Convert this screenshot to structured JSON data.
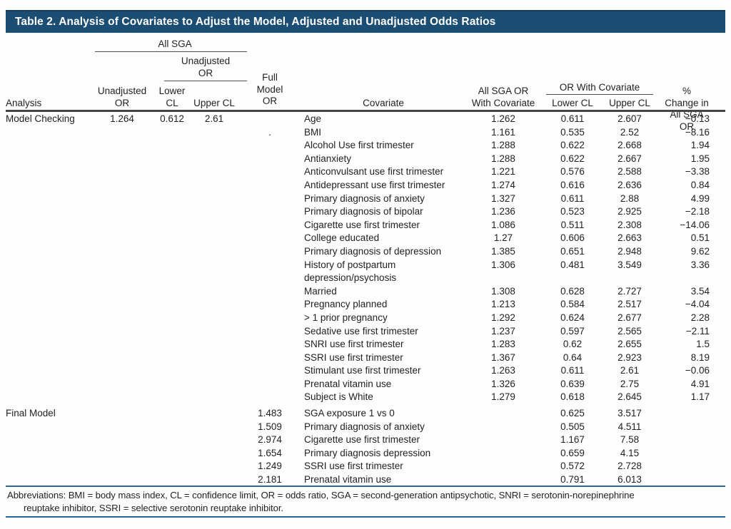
{
  "title": "Table 2. Analysis of Covariates to Adjust the Model, Adjusted and Unadjusted Odds Ratios",
  "colors": {
    "header_bar": "#1c4e74",
    "blue_rule": "#2a6496",
    "text": "#231f20"
  },
  "columns": {
    "analysis": "Analysis",
    "all_sga_group": "All SGA",
    "unadjusted_or_group": "Unadjusted\nOR",
    "unadjusted_or": "Unadjusted\nOR",
    "lower_cl": "Lower\nCL",
    "upper_cl": "Upper CL",
    "full_model_or": "Full\nModel\nOR",
    "covariate": "Covariate",
    "all_sga_or_with_covariate": "All SGA OR\nWith Covariate",
    "or_with_covariate_group": "OR With Covariate",
    "cov_lower_cl": "Lower CL",
    "cov_upper_cl": "Upper CL",
    "pct_change": "% Change in\nAll SGA OR"
  },
  "sections": [
    {
      "analysis": "Model Checking",
      "unadjusted_or": "1.264",
      "lower_cl": "0.612",
      "upper_cl": "2.61",
      "rows": [
        {
          "full_model_or": "",
          "covariate": "Age",
          "all_sga_or": "1.262",
          "lower_cl": "0.611",
          "upper_cl": "2.607",
          "pct_change": "−0.13"
        },
        {
          "full_model_or": ".",
          "covariate": "BMI",
          "all_sga_or": "1.161",
          "lower_cl": "0.535",
          "upper_cl": "2.52",
          "pct_change": "−8.16"
        },
        {
          "full_model_or": "",
          "covariate": "Alcohol Use first trimester",
          "all_sga_or": "1.288",
          "lower_cl": "0.622",
          "upper_cl": "2.668",
          "pct_change": "1.94"
        },
        {
          "full_model_or": "",
          "covariate": "Antianxiety",
          "all_sga_or": "1.288",
          "lower_cl": "0.622",
          "upper_cl": "2.667",
          "pct_change": "1.95"
        },
        {
          "full_model_or": "",
          "covariate": "Anticonvulsant use first trimester",
          "all_sga_or": "1.221",
          "lower_cl": "0.576",
          "upper_cl": "2.588",
          "pct_change": "−3.38"
        },
        {
          "full_model_or": "",
          "covariate": "Antidepressant use first trimester",
          "all_sga_or": "1.274",
          "lower_cl": "0.616",
          "upper_cl": "2.636",
          "pct_change": "0.84"
        },
        {
          "full_model_or": "",
          "covariate": "Primary diagnosis of anxiety",
          "all_sga_or": "1.327",
          "lower_cl": "0.611",
          "upper_cl": "2.88",
          "pct_change": "4.99"
        },
        {
          "full_model_or": "",
          "covariate": "Primary diagnosis of bipolar",
          "all_sga_or": "1.236",
          "lower_cl": "0.523",
          "upper_cl": "2.925",
          "pct_change": "−2.18"
        },
        {
          "full_model_or": "",
          "covariate": "Cigarette use first trimester",
          "all_sga_or": "1.086",
          "lower_cl": "0.511",
          "upper_cl": "2.308",
          "pct_change": "−14.06"
        },
        {
          "full_model_or": "",
          "covariate": "College educated",
          "all_sga_or": "1.27",
          "lower_cl": "0.606",
          "upper_cl": "2.663",
          "pct_change": "0.51"
        },
        {
          "full_model_or": "",
          "covariate": "Primary diagnosis of depression",
          "all_sga_or": "1.385",
          "lower_cl": "0.651",
          "upper_cl": "2.948",
          "pct_change": "9.62"
        },
        {
          "full_model_or": "",
          "covariate": "History of postpartum depression/psychosis",
          "all_sga_or": "1.306",
          "lower_cl": "0.481",
          "upper_cl": "3.549",
          "pct_change": "3.36"
        },
        {
          "full_model_or": "",
          "covariate": "Married",
          "all_sga_or": "1.308",
          "lower_cl": "0.628",
          "upper_cl": "2.727",
          "pct_change": "3.54"
        },
        {
          "full_model_or": "",
          "covariate": "Pregnancy planned",
          "all_sga_or": "1.213",
          "lower_cl": "0.584",
          "upper_cl": "2.517",
          "pct_change": "−4.04"
        },
        {
          "full_model_or": "",
          "covariate": "> 1 prior pregnancy",
          "all_sga_or": "1.292",
          "lower_cl": "0.624",
          "upper_cl": "2.677",
          "pct_change": "2.28"
        },
        {
          "full_model_or": "",
          "covariate": "Sedative use first trimester",
          "all_sga_or": "1.237",
          "lower_cl": "0.597",
          "upper_cl": "2.565",
          "pct_change": "−2.11"
        },
        {
          "full_model_or": "",
          "covariate": "SNRI use first trimester",
          "all_sga_or": "1.283",
          "lower_cl": "0.62",
          "upper_cl": "2.655",
          "pct_change": "1.5"
        },
        {
          "full_model_or": "",
          "covariate": "SSRI use first trimester",
          "all_sga_or": "1.367",
          "lower_cl": "0.64",
          "upper_cl": "2.923",
          "pct_change": "8.19"
        },
        {
          "full_model_or": "",
          "covariate": "Stimulant use first trimester",
          "all_sga_or": "1.263",
          "lower_cl": "0.611",
          "upper_cl": "2.61",
          "pct_change": "−0.06"
        },
        {
          "full_model_or": "",
          "covariate": "Prenatal vitamin use",
          "all_sga_or": "1.326",
          "lower_cl": "0.639",
          "upper_cl": "2.75",
          "pct_change": "4.91"
        },
        {
          "full_model_or": "",
          "covariate": "Subject is White",
          "all_sga_or": "1.279",
          "lower_cl": "0.618",
          "upper_cl": "2.645",
          "pct_change": "1.17"
        }
      ]
    },
    {
      "analysis": "Final Model",
      "unadjusted_or": "",
      "lower_cl": "",
      "upper_cl": "",
      "rows": [
        {
          "full_model_or": "1.483",
          "covariate": "SGA exposure 1 vs 0",
          "all_sga_or": "",
          "lower_cl": "0.625",
          "upper_cl": "3.517",
          "pct_change": ""
        },
        {
          "full_model_or": "1.509",
          "covariate": "Primary diagnosis of anxiety",
          "all_sga_or": "",
          "lower_cl": "0.505",
          "upper_cl": "4.511",
          "pct_change": ""
        },
        {
          "full_model_or": "2.974",
          "covariate": "Cigarette use first trimester",
          "all_sga_or": "",
          "lower_cl": "1.167",
          "upper_cl": "7.58",
          "pct_change": ""
        },
        {
          "full_model_or": "1.654",
          "covariate": "Primary diagnosis depression",
          "all_sga_or": "",
          "lower_cl": "0.659",
          "upper_cl": "4.15",
          "pct_change": ""
        },
        {
          "full_model_or": "1.249",
          "covariate": "SSRI use first trimester",
          "all_sga_or": "",
          "lower_cl": "0.572",
          "upper_cl": "2.728",
          "pct_change": ""
        },
        {
          "full_model_or": "2.181",
          "covariate": "Prenatal vitamin use",
          "all_sga_or": "",
          "lower_cl": "0.791",
          "upper_cl": "6.013",
          "pct_change": ""
        }
      ]
    }
  ],
  "footnote_lines": {
    "line1": "Abbreviations: BMI = body mass index, CL = confidence limit, OR = odds ratio, SGA = second-generation antipsychotic, SNRI = serotonin-norepinephrine",
    "line2": "reuptake inhibitor, SSRI = selective serotonin reuptake inhibitor."
  }
}
